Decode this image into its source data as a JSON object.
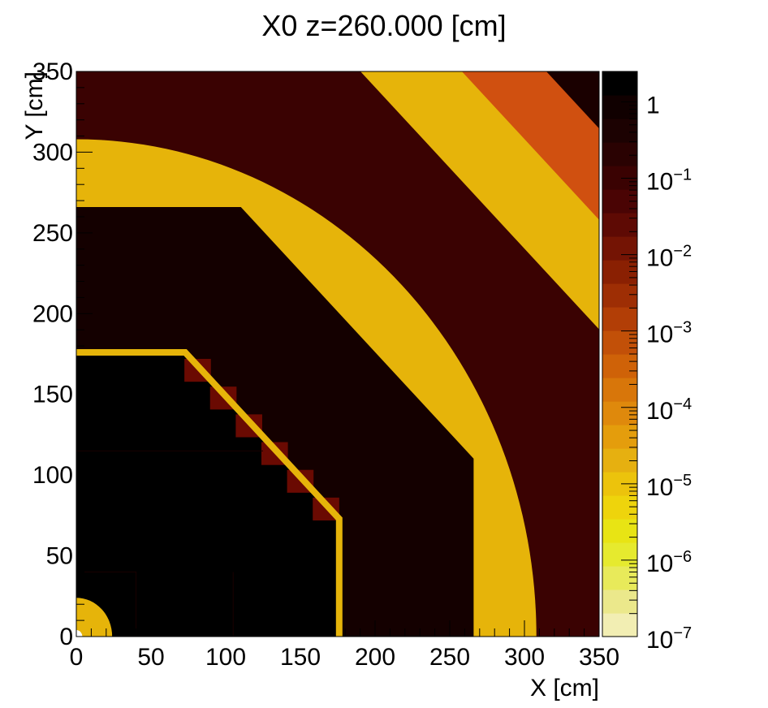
{
  "chart_data": {
    "type": "heatmap",
    "title": "X0 z=260.000 [cm]",
    "xlabel": "X [cm]",
    "ylabel": "Y [cm]",
    "xlim": [
      0,
      350
    ],
    "ylim": [
      0,
      350
    ],
    "x_ticks": [
      "0",
      "50",
      "100",
      "150",
      "200",
      "250",
      "300",
      "350"
    ],
    "y_ticks": [
      "0",
      "50",
      "100",
      "150",
      "200",
      "250",
      "300",
      "350"
    ],
    "color_scale": {
      "scale": "log",
      "range": [
        1e-07,
        2.5
      ],
      "tick_labels": [
        {
          "base": "1",
          "exp": ""
        },
        {
          "base": "10",
          "exp": "−1"
        },
        {
          "base": "10",
          "exp": "−2"
        },
        {
          "base": "10",
          "exp": "−3"
        },
        {
          "base": "10",
          "exp": "−4"
        },
        {
          "base": "10",
          "exp": "−5"
        },
        {
          "base": "10",
          "exp": "−6"
        },
        {
          "base": "10",
          "exp": "−7"
        }
      ],
      "tick_values": [
        1,
        0.1,
        0.01,
        0.001,
        0.0001,
        1e-05,
        1e-06,
        1e-07
      ],
      "palette": [
        "#f2eeb3",
        "#ebe88b",
        "#e8ea5a",
        "#e6ea2e",
        "#e8e414",
        "#eed40c",
        "#ecc30c",
        "#e6b010",
        "#e49d0c",
        "#df890c",
        "#d8760a",
        "#cf6208",
        "#c25008",
        "#b23e06",
        "#9e2e04",
        "#8a2002",
        "#741404",
        "#5e0a04",
        "#4a0404",
        "#3a0202",
        "#2a0202",
        "#1c0202",
        "#100000",
        "#000000"
      ]
    },
    "regions": [
      {
        "name": "outer-dark-band",
        "shape": "quarter-annulus",
        "color": "#3a0202"
      },
      {
        "name": "outer-gold-band",
        "shape": "octagonal-band",
        "r_inner": 382,
        "r_outer": 430,
        "color": "#e6b40a"
      },
      {
        "name": "corner-layered-region",
        "shape": "octagonal-layers",
        "color": "#1a0000"
      },
      {
        "name": "gold-ring",
        "shape": "quarter-annulus",
        "r_inner": 266,
        "r_outer": 308,
        "color": "#e6b40a"
      },
      {
        "name": "dark-region",
        "shape": "octagon-quadrant",
        "r_outer": 266,
        "color": "#140000"
      },
      {
        "name": "inner-black-region",
        "shape": "octagon-quadrant",
        "r_outer": 176,
        "color": "#000000"
      },
      {
        "name": "inner-gold-shell",
        "shape": "octagon-outline",
        "r": 176,
        "color": "#e6b40a"
      },
      {
        "name": "beam-pipe-ring",
        "shape": "quarter-annulus",
        "r_inner": 4,
        "r_outer": 24,
        "color": "#e6b40a"
      }
    ]
  }
}
